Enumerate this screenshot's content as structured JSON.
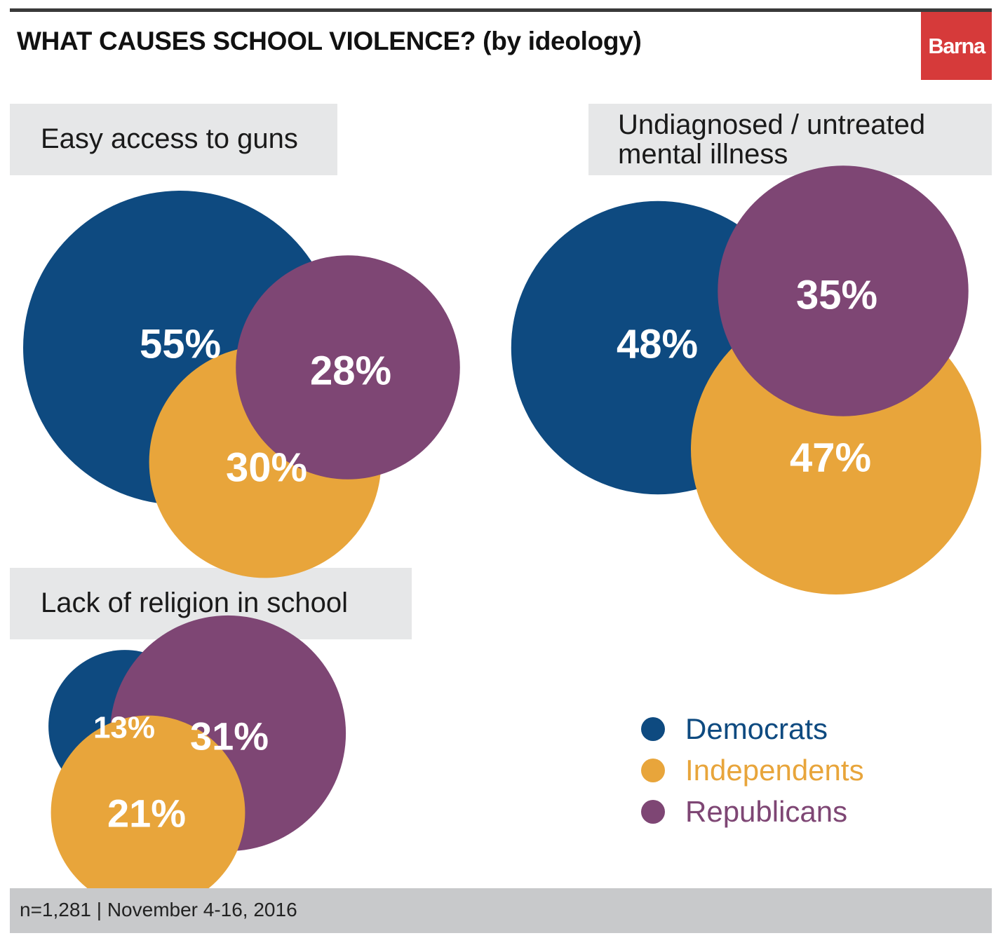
{
  "header": {
    "title": "WHAT CAUSES SCHOOL VIOLENCE?  (by ideology)",
    "brand": "Barna"
  },
  "colors": {
    "democrats": "#0e4a80",
    "independents": "#e8a53b",
    "republicans": "#7e4674",
    "brand": "#d63a3a"
  },
  "chart_data": [
    {
      "type": "bubble",
      "title": "Easy access to guns",
      "groups": [
        "Democrats",
        "Independents",
        "Republicans"
      ],
      "values": [
        55,
        30,
        28
      ]
    },
    {
      "type": "bubble",
      "title": "Undiagnosed / untreated mental illness",
      "title_lines": [
        "Undiagnosed / untreated",
        "mental illness"
      ],
      "groups": [
        "Democrats",
        "Independents",
        "Republicans"
      ],
      "values": [
        48,
        47,
        35
      ]
    },
    {
      "type": "bubble",
      "title": "Lack of religion in school",
      "groups": [
        "Democrats",
        "Independents",
        "Republicans"
      ],
      "values": [
        13,
        21,
        31
      ]
    }
  ],
  "legend": {
    "items": [
      {
        "label": "Democrats",
        "color": "#0e4a80"
      },
      {
        "label": "Independents",
        "color": "#e8a53b"
      },
      {
        "label": "Republicans",
        "color": "#7e4674"
      }
    ]
  },
  "footer": {
    "text": "n=1,281 | November 4-16, 2016"
  }
}
